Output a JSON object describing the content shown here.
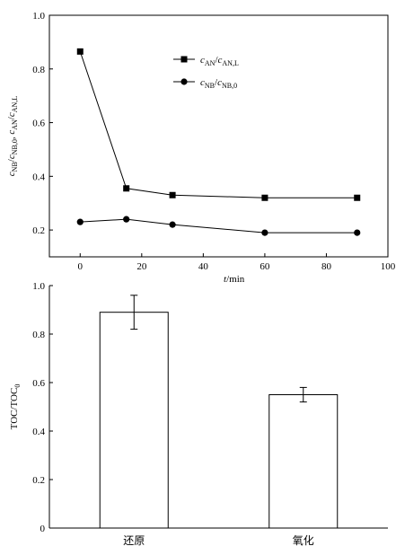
{
  "chart_data": [
    {
      "type": "line",
      "title": "",
      "xlabel": {
        "var": "t",
        "unit": "/min"
      },
      "ylabel": {
        "parts": [
          {
            "t": "c",
            "i": true
          },
          {
            "t": "NB",
            "s": true
          },
          {
            "t": "/",
            "i": false
          },
          {
            "t": "c",
            "i": true
          },
          {
            "t": "NB,0",
            "s": true
          },
          {
            "t": ", ",
            "i": false
          },
          {
            "t": "c",
            "i": true
          },
          {
            "t": "AN",
            "s": true
          },
          {
            "t": "/",
            "i": false
          },
          {
            "t": "c",
            "i": true
          },
          {
            "t": "AN,L",
            "s": true
          }
        ]
      },
      "xlim": [
        -10,
        100
      ],
      "ylim": [
        0.1,
        1.0
      ],
      "xticks": [
        0,
        20,
        40,
        60,
        80,
        100
      ],
      "yticks": [
        0.2,
        0.4,
        0.6,
        0.8,
        1.0
      ],
      "xtick_labels": [
        "0",
        "20",
        "40",
        "60",
        "80",
        "100"
      ],
      "ytick_labels": [
        "0.2",
        "0.4",
        "0.6",
        "0.8",
        "1.0"
      ],
      "legend_position": "top-center",
      "series": [
        {
          "name": [
            {
              "t": "c",
              "i": true
            },
            {
              "t": "AN",
              "s": true
            },
            {
              "t": "/",
              "i": false
            },
            {
              "t": "c",
              "i": true
            },
            {
              "t": "AN,L",
              "s": true
            }
          ],
          "marker": "square",
          "x": [
            0,
            15,
            30,
            60,
            90
          ],
          "y": [
            0.865,
            0.355,
            0.33,
            0.32,
            0.32
          ]
        },
        {
          "name": [
            {
              "t": "c",
              "i": true
            },
            {
              "t": "NB",
              "s": true
            },
            {
              "t": "/",
              "i": false
            },
            {
              "t": "c",
              "i": true
            },
            {
              "t": "NB,0",
              "s": true
            }
          ],
          "marker": "circle",
          "x": [
            0,
            15,
            30,
            60,
            90
          ],
          "y": [
            0.23,
            0.24,
            0.22,
            0.19,
            0.19
          ]
        }
      ]
    },
    {
      "type": "bar",
      "title": "",
      "ylabel": {
        "main": "TOC/TOC",
        "sub": "0"
      },
      "categories": [
        "还原",
        "氧化"
      ],
      "values": [
        0.89,
        0.55
      ],
      "errors": [
        0.07,
        0.03
      ],
      "ylim": [
        0,
        1.0
      ],
      "yticks": [
        0,
        0.2,
        0.4,
        0.6,
        0.8,
        1.0
      ],
      "ytick_labels": [
        "0",
        "0.2",
        "0.4",
        "0.6",
        "0.8",
        "1.0"
      ]
    }
  ]
}
